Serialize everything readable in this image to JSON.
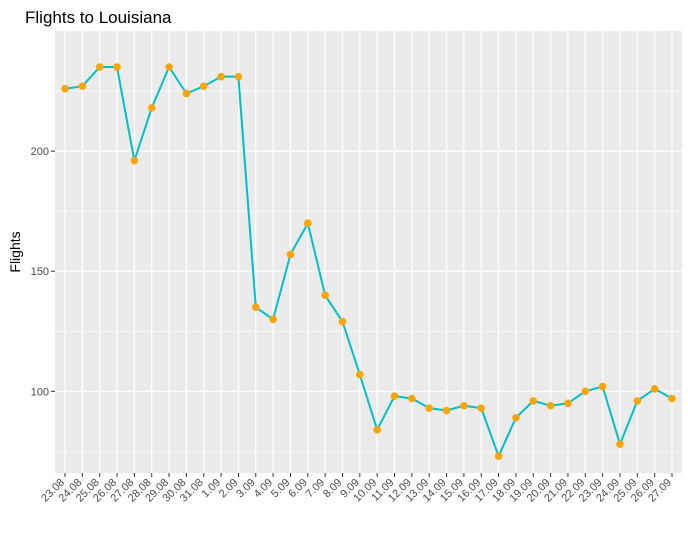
{
  "chart_data": {
    "type": "line",
    "title": "Flights to Louisiana",
    "xlabel": "",
    "ylabel": "Flights",
    "ylim": [
      66,
      250
    ],
    "yticks": [
      100,
      150,
      200
    ],
    "grid": true,
    "legend": "none",
    "categories": [
      "23.08",
      "24.08",
      "25.08",
      "26.08",
      "27.08",
      "28.08",
      "29.08",
      "30.08",
      "31.08",
      "1.09",
      "2.09",
      "3.09",
      "4.09",
      "5.09",
      "6.09",
      "7.09",
      "8.09",
      "9.09",
      "10.09",
      "11.09",
      "12.09",
      "13.09",
      "14.09",
      "15.09",
      "16.09",
      "17.09",
      "18.09",
      "19.09",
      "20.09",
      "21.09",
      "22.09",
      "23.09",
      "24.09",
      "25.09",
      "26.09",
      "27.09"
    ],
    "series": [
      {
        "values": [
          226,
          227,
          235,
          235,
          196,
          218,
          235,
          224,
          227,
          231,
          231,
          135,
          130,
          157,
          170,
          140,
          129,
          107,
          84,
          98,
          97,
          93,
          92,
          94,
          93,
          73,
          89,
          96,
          94,
          95,
          100,
          102,
          78,
          96,
          101,
          97
        ]
      }
    ],
    "colors": {
      "line": "#00BFC4",
      "points": "#FFA500",
      "panel": "#EBEBEB",
      "grid": "#FFFFFF"
    }
  }
}
